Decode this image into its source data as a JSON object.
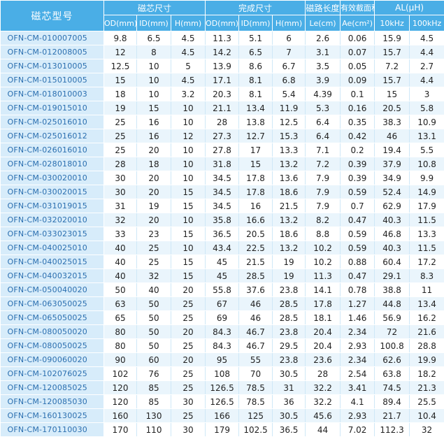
{
  "header": {
    "model": "磁芯型号",
    "groups": [
      "磁芯尺寸",
      "完成尺寸",
      "磁路长度",
      "有效截面积",
      "AL(μH)"
    ],
    "sub": [
      "OD(mm)",
      "ID(mm)",
      "H(mm)",
      "OD(mm)",
      "ID(mm)",
      "H(mm)",
      "Le(cm)",
      "Ae(cm²)",
      "10kHz",
      "100kHz"
    ]
  },
  "rows": [
    [
      "OFN-CM-010007005",
      "9.8",
      "6.5",
      "4.5",
      "11.3",
      "5.1",
      "6",
      "2.6",
      "0.06",
      "15.9",
      "4.5"
    ],
    [
      "OFN-CM-012008005",
      "12",
      "8",
      "4.5",
      "14.2",
      "6.5",
      "7",
      "3.1",
      "0.07",
      "15.7",
      "4.4"
    ],
    [
      "OFN-CM-013010005",
      "12.5",
      "10",
      "5",
      "13.9",
      "8.6",
      "6.7",
      "3.5",
      "0.05",
      "7.2",
      "2.7"
    ],
    [
      "OFN-CM-015010005",
      "15",
      "10",
      "4.5",
      "17.1",
      "8.1",
      "6.8",
      "3.9",
      "0.09",
      "15.7",
      "4.4"
    ],
    [
      "OFN-CM-018010003",
      "18",
      "10",
      "3.2",
      "20.3",
      "8.1",
      "5.4",
      "4.39",
      "0.1",
      "15",
      "3"
    ],
    [
      "OFN-CM-019015010",
      "19",
      "15",
      "10",
      "21.1",
      "13.4",
      "11.9",
      "5.3",
      "0.16",
      "20.5",
      "5.8"
    ],
    [
      "OFN-CM-025016010",
      "25",
      "16",
      "10",
      "28",
      "13.8",
      "12.5",
      "6.4",
      "0.35",
      "38.3",
      "10.9"
    ],
    [
      "OFN-CM-025016012",
      "25",
      "16",
      "12",
      "27.3",
      "12.7",
      "15.3",
      "6.4",
      "0.42",
      "46",
      "13.1"
    ],
    [
      "OFN-CM-026016010",
      "25",
      "20",
      "10",
      "27.8",
      "17",
      "13.3",
      "7.1",
      "0.2",
      "19.4",
      "5.5"
    ],
    [
      "OFN-CM-028018010",
      "28",
      "18",
      "10",
      "31.8",
      "15",
      "13.2",
      "7.2",
      "0.39",
      "37.9",
      "10.8"
    ],
    [
      "OFN-CM-030020010",
      "30",
      "20",
      "10",
      "34.5",
      "17.8",
      "13.6",
      "7.9",
      "0.39",
      "34.9",
      "9.9"
    ],
    [
      "OFN-CM-030020015",
      "30",
      "20",
      "15",
      "34.5",
      "17.8",
      "18.6",
      "7.9",
      "0.59",
      "52.4",
      "14.9"
    ],
    [
      "OFN-CM-031019015",
      "31",
      "19",
      "15",
      "34.5",
      "16",
      "21.5",
      "7.9",
      "0.7",
      "62.9",
      "17.9"
    ],
    [
      "OFN-CM-032020010",
      "32",
      "20",
      "10",
      "35.8",
      "16.6",
      "13.2",
      "8.2",
      "0.47",
      "40.3",
      "11.5"
    ],
    [
      "OFN-CM-033023015",
      "33",
      "23",
      "15",
      "36.5",
      "20.5",
      "18.6",
      "8.8",
      "0.59",
      "46.8",
      "13.3"
    ],
    [
      "OFN-CM-040025010",
      "40",
      "25",
      "10",
      "43.4",
      "22.5",
      "13.2",
      "10.2",
      "0.59",
      "40.3",
      "11.5"
    ],
    [
      "OFN-CM-040025015",
      "40",
      "25",
      "15",
      "45",
      "21.5",
      "19",
      "10.2",
      "0.88",
      "60.4",
      "17.2"
    ],
    [
      "OFN-CM-040032015",
      "40",
      "32",
      "15",
      "45",
      "28.5",
      "19",
      "11.3",
      "0.47",
      "29.1",
      "8.3"
    ],
    [
      "OFN-CM-050040020",
      "50",
      "40",
      "20",
      "55.8",
      "37.6",
      "23.8",
      "14.1",
      "0.78",
      "38.8",
      "11"
    ],
    [
      "OFN-CM-063050025",
      "63",
      "50",
      "25",
      "67",
      "46",
      "28.5",
      "17.8",
      "1.27",
      "44.8",
      "13.4"
    ],
    [
      "OFN-CM-065050025",
      "65",
      "50",
      "25",
      "69",
      "46",
      "28.5",
      "18.1",
      "1.46",
      "56.9",
      "16.2"
    ],
    [
      "OFN-CM-080050020",
      "80",
      "50",
      "20",
      "84.3",
      "46.7",
      "23.8",
      "20.4",
      "2.34",
      "72",
      "21.6"
    ],
    [
      "OFN-CM-080050025",
      "80",
      "50",
      "25",
      "84.3",
      "46.7",
      "29.5",
      "20.4",
      "2.93",
      "100.8",
      "28.8"
    ],
    [
      "OFN-CM-090060020",
      "90",
      "60",
      "20",
      "95",
      "55",
      "23.8",
      "23.6",
      "2.34",
      "62.6",
      "19.9"
    ],
    [
      "OFN-CM-102076025",
      "102",
      "76",
      "25",
      "108",
      "70",
      "30.5",
      "28",
      "2.54",
      "63.8",
      "18.2"
    ],
    [
      "OFN-CM-120085025",
      "120",
      "85",
      "25",
      "126.5",
      "78.5",
      "31",
      "32.2",
      "3.41",
      "74.5",
      "21.3"
    ],
    [
      "OFN-CM-120085030",
      "120",
      "85",
      "30",
      "126.5",
      "78.5",
      "36",
      "32.2",
      "4.1",
      "89.4",
      "25.5"
    ],
    [
      "OFN-CM-160130025",
      "160",
      "130",
      "25",
      "166",
      "125",
      "30.5",
      "45.6",
      "2.93",
      "21.7",
      "10.4"
    ],
    [
      "OFN-CM-170110030",
      "170",
      "110",
      "30",
      "179",
      "102.5",
      "36.5",
      "44",
      "7.02",
      "112.3",
      "32"
    ]
  ]
}
